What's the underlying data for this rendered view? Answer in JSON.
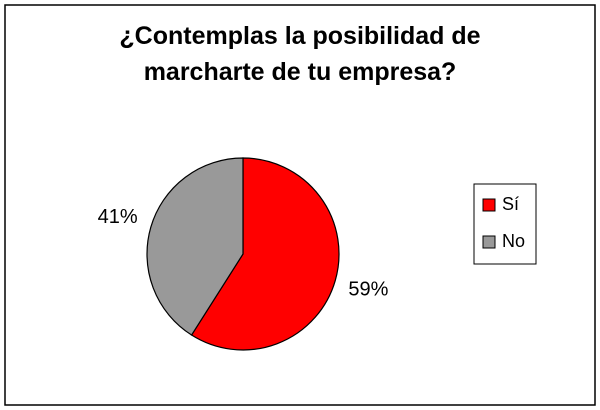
{
  "chart_data": {
    "type": "pie",
    "title": "¿Contemplas la posibilidad de marcharte de tu empresa?",
    "categories": [
      "Sí",
      "No"
    ],
    "values": [
      59,
      41
    ],
    "value_labels": [
      "59%",
      "41%"
    ],
    "colors": [
      "#ff0000",
      "#999999"
    ],
    "legend": "right"
  }
}
